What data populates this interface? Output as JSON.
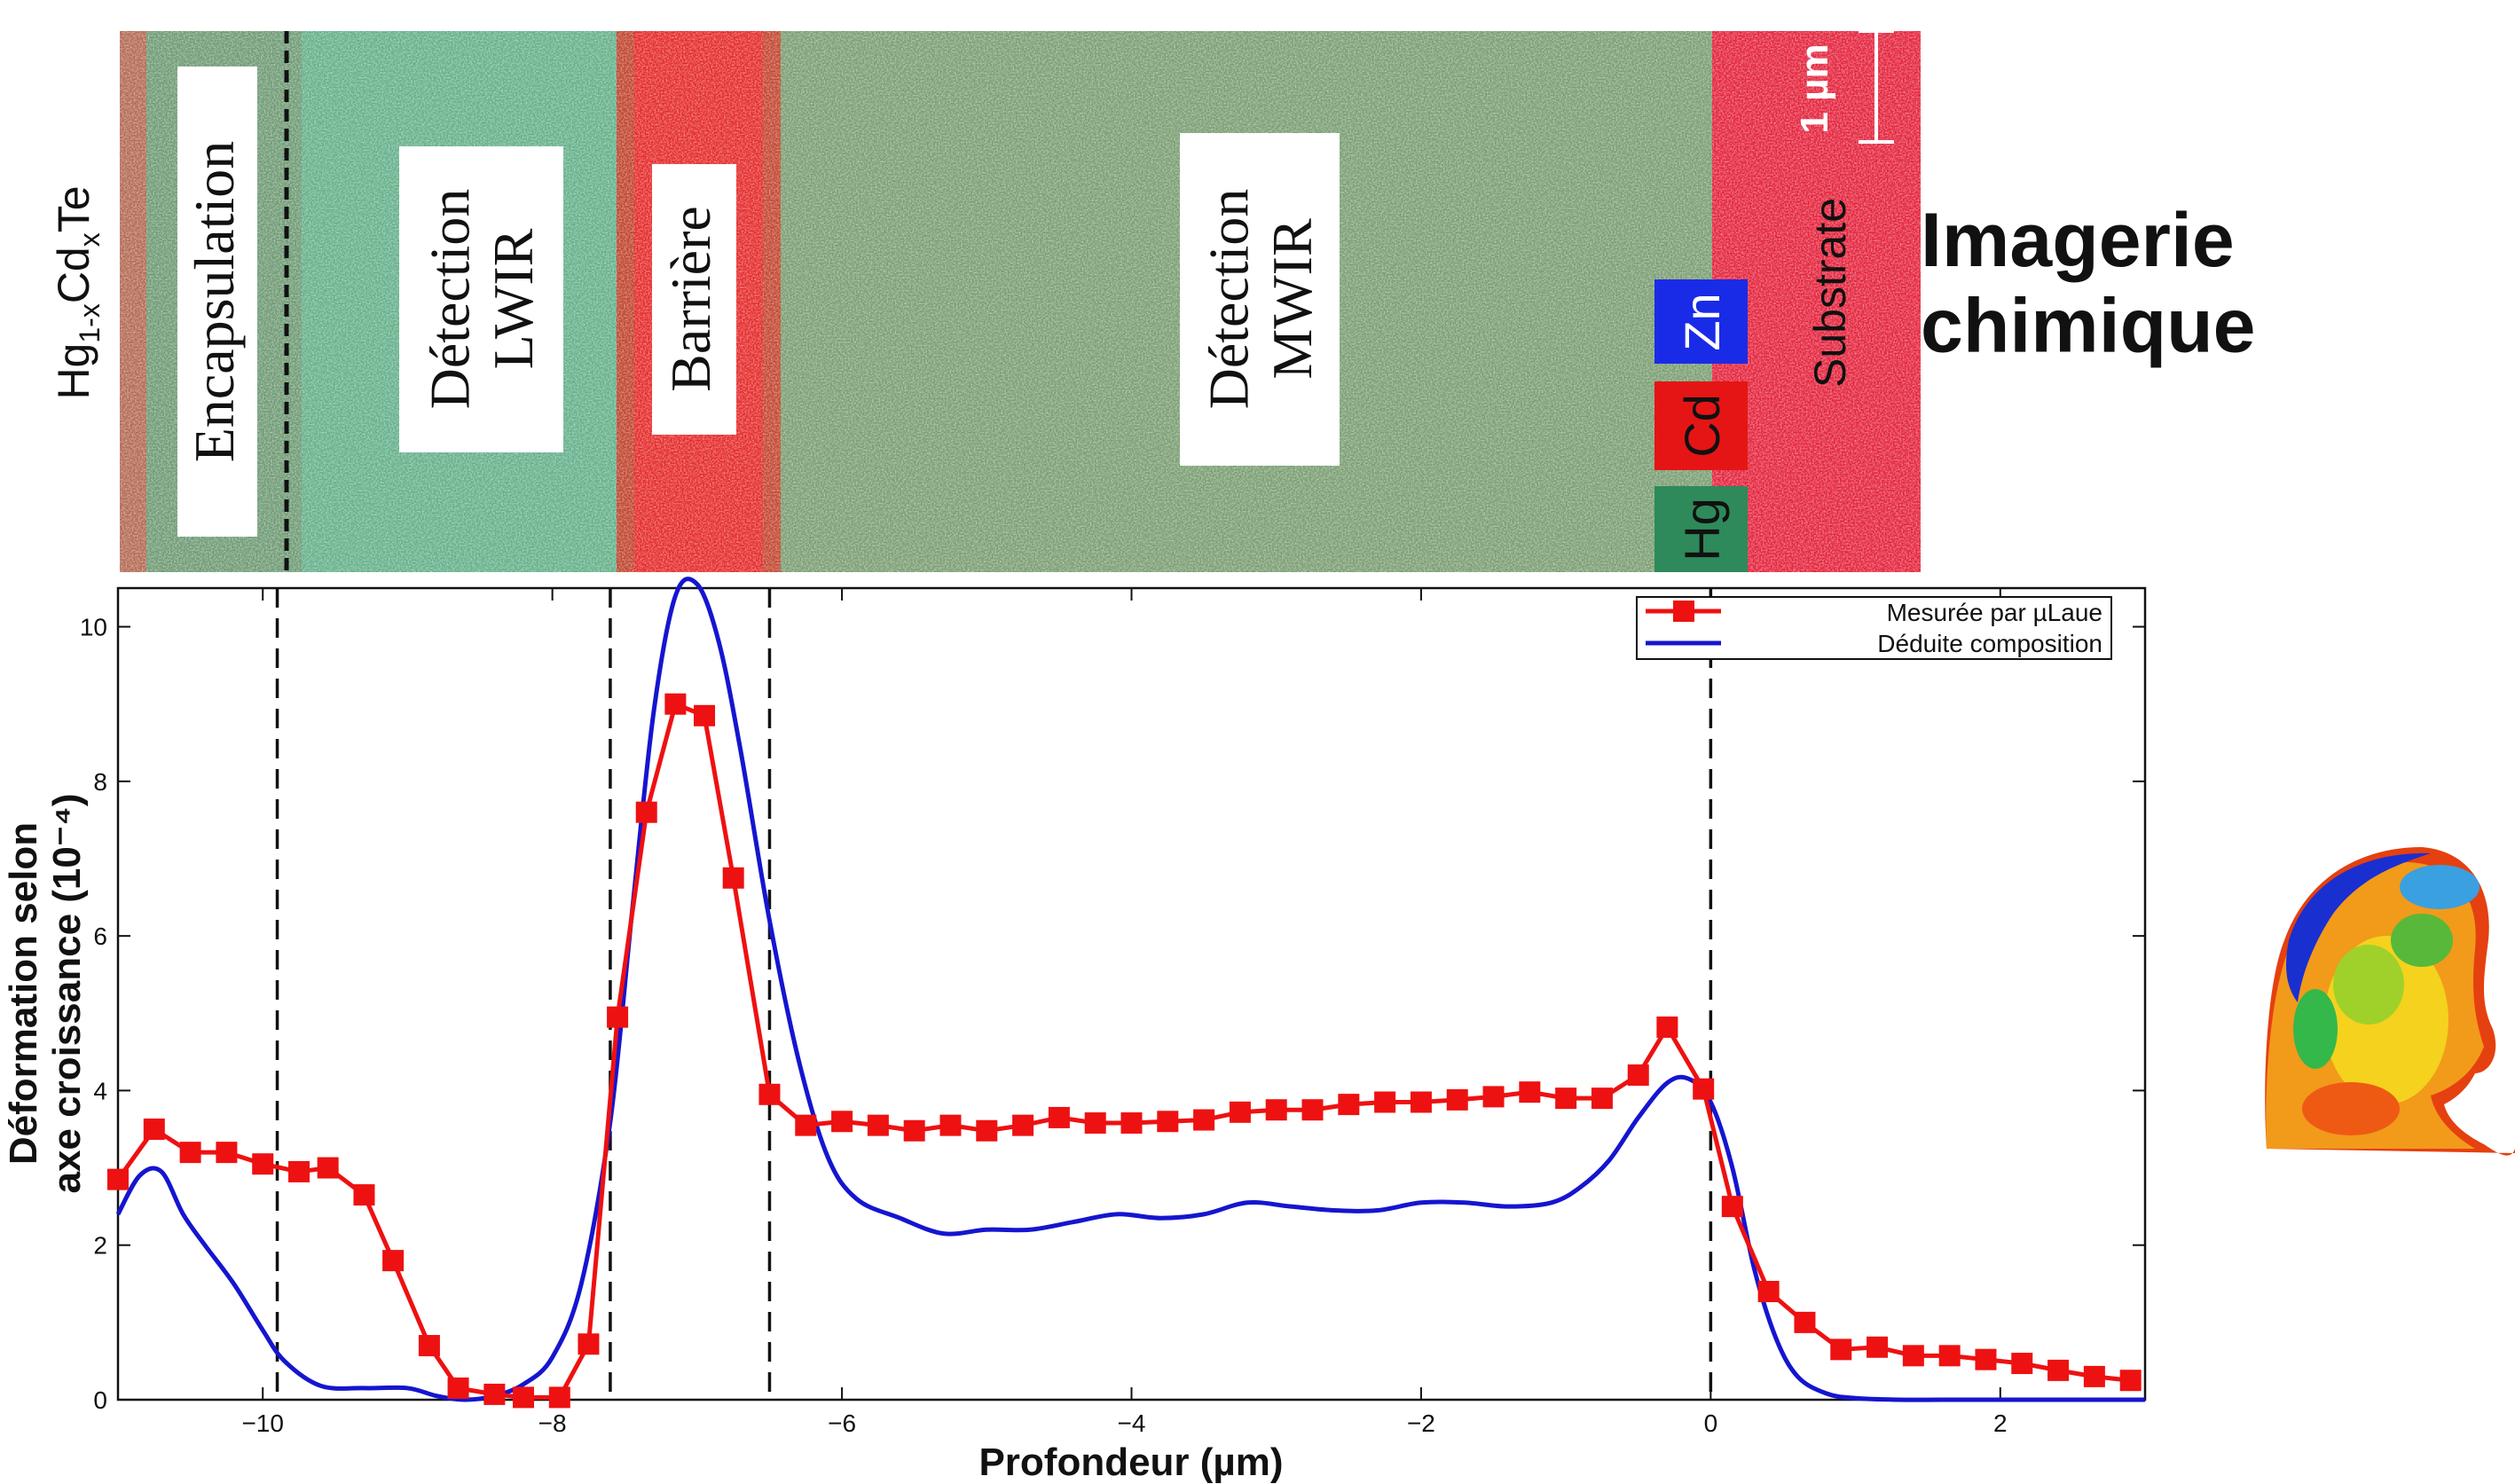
{
  "slide": {
    "side_label": "Imagerie\nchimique",
    "sample_formula": {
      "main": "Hg",
      "sub1": "1-x",
      "mid": "Cd",
      "sub2": "x",
      "end": "Te"
    }
  },
  "micrograph": {
    "layers": [
      {
        "id": "encapsulation",
        "label": "Encapsulation"
      },
      {
        "id": "detection-lwir",
        "label": "Détection\nLWIR"
      },
      {
        "id": "barriere",
        "label": "Barrière"
      },
      {
        "id": "detection-mwir",
        "label": "Détection\nMWIR"
      },
      {
        "id": "substrate",
        "label": "Substrate"
      }
    ],
    "scale_bar": "1 µm",
    "element_legend": [
      {
        "label": "Zn",
        "color": "#1a2be8"
      },
      {
        "label": "Cd",
        "color": "#e51515"
      },
      {
        "label": "Hg",
        "color": "#2e8a5a"
      }
    ]
  },
  "chart_data": {
    "type": "line",
    "xlabel": "Profondeur (µm)",
    "ylabel": "Déformation selon\naxe croissance (10⁻⁴)",
    "xlim": [
      -11,
      3
    ],
    "ylim": [
      0,
      10.5
    ],
    "xticks": [
      -10,
      -8,
      -6,
      -4,
      -2,
      0,
      2
    ],
    "xtick_labels": [
      "−10",
      "−8",
      "−6",
      "−4",
      "−2",
      "0",
      "2"
    ],
    "yticks": [
      0,
      2,
      4,
      6,
      8,
      10
    ],
    "ytick_labels": [
      "0",
      "2",
      "4",
      "6",
      "8",
      "10"
    ],
    "vlines": [
      -9.9,
      -7.6,
      -6.5,
      0
    ],
    "legend_position": "top-right",
    "series": [
      {
        "name": "Mesurée par µLaue",
        "color": "#ee1111",
        "marker": "square",
        "x": [
          -11.0,
          -10.75,
          -10.5,
          -10.25,
          -10.0,
          -9.75,
          -9.55,
          -9.3,
          -9.1,
          -8.85,
          -8.65,
          -8.4,
          -8.2,
          -7.95,
          -7.75,
          -7.55,
          -7.35,
          -7.15,
          -6.95,
          -6.75,
          -6.5,
          -6.25,
          -6.0,
          -5.75,
          -5.5,
          -5.25,
          -5.0,
          -4.75,
          -4.5,
          -4.25,
          -4.0,
          -3.75,
          -3.5,
          -3.25,
          -3.0,
          -2.75,
          -2.5,
          -2.25,
          -2.0,
          -1.75,
          -1.5,
          -1.25,
          -1.0,
          -0.75,
          -0.5,
          -0.3,
          -0.05,
          0.15,
          0.4,
          0.65,
          0.9,
          1.15,
          1.4,
          1.65,
          1.9,
          2.15,
          2.4,
          2.65,
          2.9
        ],
        "y": [
          2.85,
          3.5,
          3.2,
          3.2,
          3.05,
          2.95,
          3.0,
          2.65,
          1.8,
          0.7,
          0.15,
          0.07,
          0.03,
          0.03,
          0.72,
          4.95,
          7.6,
          9.0,
          8.85,
          6.75,
          3.95,
          3.55,
          3.6,
          3.55,
          3.48,
          3.55,
          3.48,
          3.55,
          3.65,
          3.58,
          3.58,
          3.6,
          3.62,
          3.72,
          3.75,
          3.75,
          3.82,
          3.85,
          3.85,
          3.88,
          3.92,
          3.98,
          3.9,
          3.9,
          4.2,
          4.82,
          4.02,
          2.5,
          1.4,
          1.0,
          0.65,
          0.68,
          0.57,
          0.57,
          0.52,
          0.47,
          0.38,
          0.3,
          0.25
        ]
      },
      {
        "name": "Déduite composition",
        "color": "#1515d0",
        "marker": "none",
        "x": [
          -11.0,
          -10.85,
          -10.7,
          -10.55,
          -10.4,
          -10.2,
          -10.0,
          -9.85,
          -9.6,
          -9.3,
          -9.0,
          -8.8,
          -8.6,
          -8.4,
          -8.2,
          -8.0,
          -7.8,
          -7.6,
          -7.45,
          -7.3,
          -7.15,
          -7.0,
          -6.85,
          -6.7,
          -6.5,
          -6.3,
          -6.1,
          -5.9,
          -5.6,
          -5.3,
          -5.0,
          -4.7,
          -4.4,
          -4.1,
          -3.8,
          -3.5,
          -3.2,
          -2.9,
          -2.6,
          -2.3,
          -2.0,
          -1.7,
          -1.4,
          -1.1,
          -0.9,
          -0.7,
          -0.5,
          -0.3,
          -0.15,
          0.0,
          0.15,
          0.3,
          0.45,
          0.6,
          0.8,
          1.0,
          1.3,
          1.6,
          2.0,
          2.5,
          3.0
        ],
        "y": [
          2.4,
          2.9,
          2.95,
          2.4,
          2.0,
          1.5,
          0.9,
          0.5,
          0.18,
          0.15,
          0.15,
          0.05,
          0.0,
          0.05,
          0.2,
          0.55,
          1.5,
          3.6,
          6.3,
          8.9,
          10.4,
          10.55,
          9.8,
          8.4,
          6.2,
          4.4,
          3.15,
          2.6,
          2.35,
          2.15,
          2.2,
          2.2,
          2.3,
          2.4,
          2.35,
          2.4,
          2.55,
          2.5,
          2.45,
          2.45,
          2.55,
          2.55,
          2.5,
          2.55,
          2.75,
          3.1,
          3.65,
          4.1,
          4.15,
          3.85,
          3.0,
          1.7,
          0.8,
          0.3,
          0.08,
          0.02,
          0.0,
          0.0,
          0.0,
          0.0,
          0.0
        ]
      }
    ]
  }
}
